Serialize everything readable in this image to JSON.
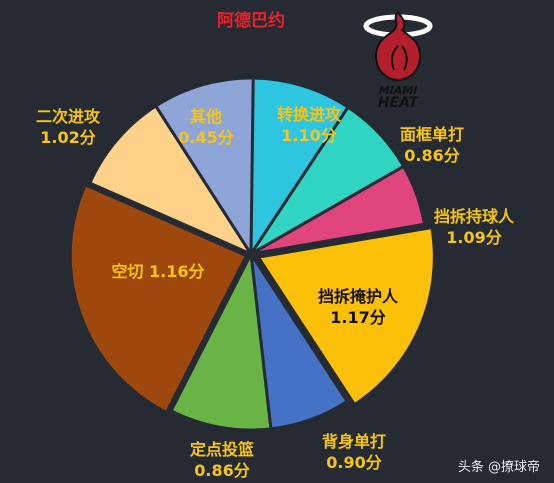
{
  "header": {
    "title": "阿德巴约"
  },
  "logo": {
    "line1": "MIAMI",
    "line2": "HEAT"
  },
  "watermark": "头条 @撩球帝",
  "colors": {
    "background": "#262b33",
    "title": "#e8202a",
    "label_yellow": "#f5c518",
    "label_black": "#111111"
  },
  "chart_data": {
    "type": "pie",
    "title": "阿德巴约",
    "unit": "分",
    "slices": [
      {
        "name": "转换进攻",
        "value": 1.1,
        "value_label": "1.10分",
        "share": 0.093,
        "color": "#2ec5e0"
      },
      {
        "name": "面框单打",
        "value": 0.86,
        "value_label": "0.86分",
        "share": 0.074,
        "color": "#2fd4c2"
      },
      {
        "name": "挡拆持球人",
        "value": 1.09,
        "value_label": "1.09分",
        "share": 0.056,
        "color": "#e0457d"
      },
      {
        "name": "挡拆掩护人",
        "value": 1.17,
        "value_label": "1.17分",
        "share": 0.185,
        "color": "#fdc009"
      },
      {
        "name": "背身单打",
        "value": 0.9,
        "value_label": "0.90分",
        "share": 0.074,
        "color": "#4572c4"
      },
      {
        "name": "定点投篮",
        "value": 0.86,
        "value_label": "0.86分",
        "share": 0.093,
        "color": "#6ab446"
      },
      {
        "name": "空切",
        "value": 1.16,
        "value_label": "空切 1.16分",
        "share": 0.241,
        "color": "#9e480e"
      },
      {
        "name": "二次进攻",
        "value": 1.02,
        "value_label": "1.02分",
        "share": 0.093,
        "color": "#ffd28a"
      },
      {
        "name": "其他",
        "value": 0.45,
        "value_label": "0.45分",
        "share": 0.093,
        "color": "#8fa5d8"
      }
    ]
  }
}
